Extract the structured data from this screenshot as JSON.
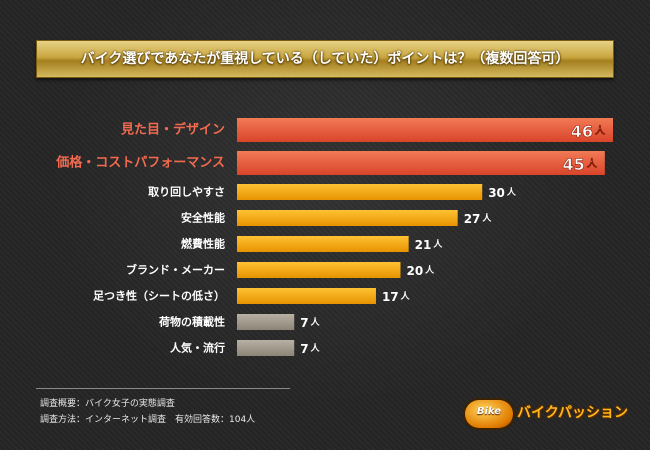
{
  "title": "バイク選びであなたが重視している（していた）ポイントは？（複数回答可）",
  "unit": "人",
  "notes": [
    "調査概要：バイク女子の実態調査",
    "調査方法：インターネット調査　有効回答数：104人"
  ],
  "logo": {
    "badge_text": "Bike",
    "text": "バイクパッション"
  },
  "colors": {
    "top_bar": "#e8593a",
    "top_label": "#f26a4f",
    "mid_bar": "#f7ab0e",
    "low_bar": "#a39b8e"
  },
  "chart_data": {
    "type": "bar",
    "orientation": "horizontal",
    "title": "バイク選びであなたが重視している（していた）ポイントは？（複数回答可）",
    "categories": [
      "見た目・デザイン",
      "価格・コストパフォーマンス",
      "取り回しやすさ",
      "安全性能",
      "燃費性能",
      "ブランド・メーカー",
      "足つき性（シートの低さ）",
      "荷物の積載性",
      "人気・流行"
    ],
    "values": [
      46,
      45,
      30,
      27,
      21,
      20,
      17,
      7,
      7
    ],
    "value_unit": "人",
    "xlim": [
      0,
      46
    ],
    "grid": false,
    "legend": "none"
  }
}
